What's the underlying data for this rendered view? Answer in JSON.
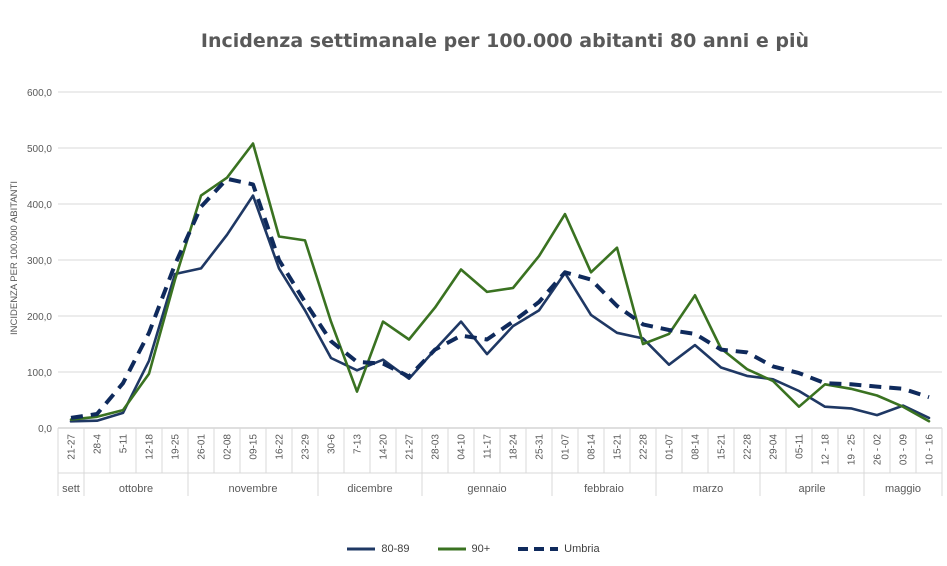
{
  "chart_data": {
    "type": "line",
    "title": "Incidenza settimanale per 100.000 abitanti 80 anni e più",
    "ylabel": "INCIDENZA PER 100.000 ABITANTI",
    "xlabel": "",
    "ylim": [
      0,
      600
    ],
    "yticks": [
      "0,0",
      "100,0",
      "200,0",
      "300,0",
      "400,0",
      "500,0",
      "600,0"
    ],
    "grid": true,
    "legend_position": "bottom",
    "categories": [
      "21-27",
      "28-4",
      "5-11",
      "12-18",
      "19-25",
      "26-01",
      "02-08",
      "09-15",
      "16-22",
      "23-29",
      "30-6",
      "7-13",
      "14-20",
      "21-27",
      "28-03",
      "04-10",
      "11-17",
      "18-24",
      "25-31",
      "01-07",
      "08-14",
      "15-21",
      "22-28",
      "01-07",
      "08-14",
      "15-21",
      "22-28",
      "29-04",
      "05-11",
      "12 - 18",
      "19 - 25",
      "26 - 02",
      "03 - 09",
      "10 - 16"
    ],
    "months": [
      {
        "label": "sett",
        "start": 0,
        "end": 0
      },
      {
        "label": "ottobre",
        "start": 1,
        "end": 4
      },
      {
        "label": "novembre",
        "start": 5,
        "end": 9
      },
      {
        "label": "dicembre",
        "start": 10,
        "end": 13
      },
      {
        "label": "gennaio",
        "start": 14,
        "end": 18
      },
      {
        "label": "febbraio",
        "start": 19,
        "end": 22
      },
      {
        "label": "marzo",
        "start": 23,
        "end": 26
      },
      {
        "label": "aprile",
        "start": 27,
        "end": 30
      },
      {
        "label": "maggio",
        "start": 31,
        "end": 33
      }
    ],
    "series": [
      {
        "name": "80-89",
        "color": "#1f3864",
        "style": "solid",
        "values": [
          12,
          13,
          27,
          120,
          275,
          285,
          345,
          415,
          285,
          210,
          125,
          103,
          122,
          88,
          140,
          190,
          132,
          182,
          210,
          277,
          202,
          170,
          160,
          113,
          148,
          108,
          93,
          87,
          66,
          38,
          35,
          23,
          40,
          18
        ]
      },
      {
        "name": "90+",
        "color": "#3a7221",
        "style": "solid",
        "values": [
          15,
          20,
          32,
          97,
          265,
          415,
          447,
          508,
          342,
          335,
          190,
          65,
          190,
          158,
          215,
          283,
          243,
          250,
          307,
          382,
          278,
          322,
          150,
          168,
          237,
          142,
          105,
          84,
          38,
          78,
          70,
          58,
          38,
          12
        ]
      },
      {
        "name": "Umbria",
        "color": "#0f2a5c",
        "style": "dashed",
        "values": [
          18,
          25,
          80,
          170,
          292,
          395,
          445,
          435,
          300,
          225,
          155,
          118,
          115,
          92,
          140,
          165,
          158,
          190,
          225,
          278,
          265,
          218,
          185,
          175,
          168,
          140,
          135,
          110,
          98,
          80,
          78,
          74,
          70,
          55
        ]
      }
    ]
  }
}
